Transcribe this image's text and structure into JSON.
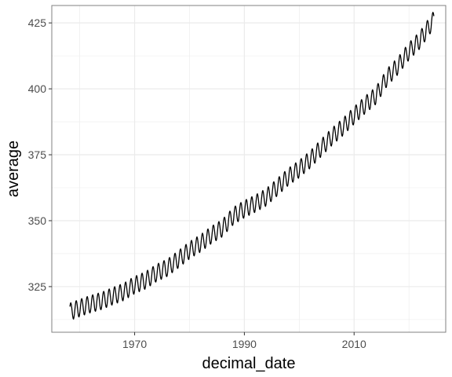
{
  "chart_data": {
    "type": "line",
    "title": "",
    "xlabel": "decimal_date",
    "ylabel": "average",
    "xlim": [
      1954.9,
      2026.7
    ],
    "ylim": [
      307.7,
      431.6
    ],
    "x_ticks": [
      1970,
      1990,
      2010
    ],
    "x_tick_labels": [
      "1970",
      "1990",
      "2010"
    ],
    "y_ticks": [
      325,
      350,
      375,
      400,
      425
    ],
    "y_tick_labels": [
      "325",
      "350",
      "375",
      "400",
      "425"
    ],
    "grid": true,
    "legend": "none",
    "series": [
      {
        "name": "",
        "color": "#000000",
        "x": [
          1958,
          1960,
          1962,
          1964,
          1966,
          1968,
          1970,
          1972,
          1974,
          1976,
          1978,
          1980,
          1982,
          1984,
          1986,
          1988,
          1990,
          1992,
          1994,
          1996,
          1998,
          2000,
          2002,
          2004,
          2006,
          2008,
          2010,
          2012,
          2014,
          2016,
          2018,
          2020,
          2022,
          2024
        ],
        "y": [
          315.3,
          316.9,
          318.4,
          319.6,
          321.4,
          323.0,
          325.6,
          327.4,
          330.2,
          332.2,
          335.4,
          338.8,
          341.4,
          344.6,
          347.2,
          351.8,
          354.4,
          356.5,
          358.9,
          362.7,
          366.6,
          369.6,
          373.2,
          377.6,
          381.9,
          385.6,
          389.9,
          393.9,
          397.5,
          404.3,
          408.7,
          414.2,
          418.5,
          424.6
        ],
        "seasonal_amplitude_ppm": 3.3
      }
    ]
  }
}
